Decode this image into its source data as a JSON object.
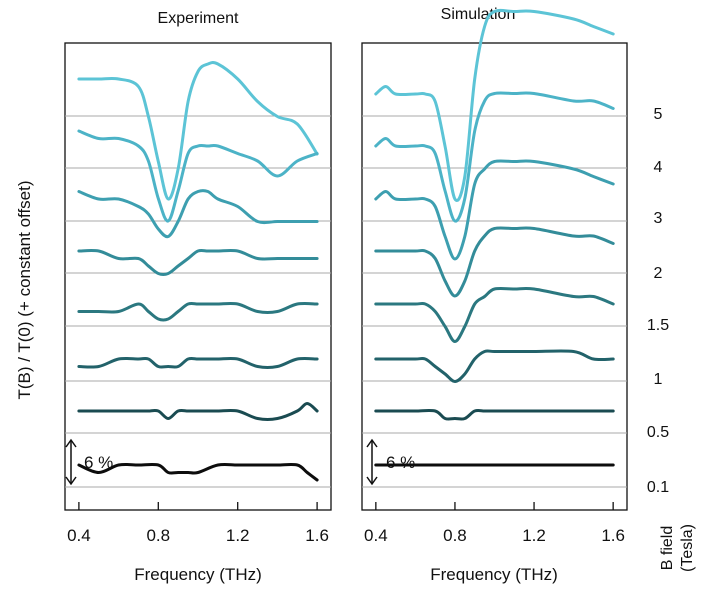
{
  "figure": {
    "ylabel": "T(B) / T(0)   (+ constant offset)",
    "field_axis_label": [
      "B field",
      "(Tesla)"
    ],
    "scale_bar_label": "6 %",
    "field_values": [
      "5",
      "4",
      "3",
      "2",
      "1.5",
      "1",
      "0.5",
      "0.1"
    ],
    "colors": [
      "#5cc4d6",
      "#4cb3c7",
      "#3d9fb0",
      "#338c99",
      "#2b7880",
      "#22626a",
      "#1a4b51",
      "#0d0d0d"
    ],
    "baseline_color": "#a8a8a8"
  },
  "chart_data": [
    {
      "type": "line",
      "title": "Experiment",
      "xlabel": "Frequency (THz)",
      "ylabel": "T(B) / T(0)   (+ constant offset)",
      "xlim": [
        0.33,
        1.67
      ],
      "xticks": [
        "0.4",
        "0.8",
        "1.2",
        "1.6"
      ],
      "offset_step": 0.06,
      "series": [
        {
          "name": "5",
          "x": [
            0.4,
            0.5,
            0.6,
            0.7,
            0.75,
            0.8,
            0.85,
            0.9,
            0.95,
            1.0,
            1.05,
            1.1,
            1.2,
            1.3,
            1.4,
            1.5,
            1.6
          ],
          "y": [
            1.02,
            1.02,
            1.02,
            1.01,
            0.97,
            0.91,
            0.86,
            0.9,
            0.99,
            1.03,
            1.04,
            1.04,
            1.02,
            0.99,
            0.97,
            0.96,
            0.92
          ]
        },
        {
          "name": "4",
          "x": [
            0.4,
            0.5,
            0.6,
            0.7,
            0.75,
            0.8,
            0.85,
            0.9,
            0.95,
            1.0,
            1.05,
            1.1,
            1.2,
            1.3,
            1.4,
            1.5,
            1.6
          ],
          "y": [
            1.02,
            1.01,
            1.01,
            1.0,
            0.98,
            0.93,
            0.9,
            0.94,
            0.99,
            1.0,
            1.0,
            1.0,
            0.99,
            0.98,
            0.96,
            0.98,
            0.99
          ]
        },
        {
          "name": "3",
          "x": [
            0.4,
            0.5,
            0.6,
            0.7,
            0.75,
            0.8,
            0.85,
            0.9,
            0.95,
            1.0,
            1.05,
            1.1,
            1.2,
            1.3,
            1.4,
            1.5,
            1.6
          ],
          "y": [
            1.01,
            1.0,
            1.0,
            0.99,
            0.98,
            0.96,
            0.95,
            0.97,
            1.0,
            1.01,
            1.01,
            1.0,
            0.99,
            0.97,
            0.97,
            0.97,
            0.97
          ]
        },
        {
          "name": "2",
          "x": [
            0.4,
            0.5,
            0.6,
            0.7,
            0.75,
            0.8,
            0.85,
            0.9,
            0.95,
            1.0,
            1.05,
            1.1,
            1.2,
            1.3,
            1.4,
            1.5,
            1.6
          ],
          "y": [
            1.0,
            1.0,
            0.99,
            0.99,
            0.98,
            0.97,
            0.97,
            0.98,
            0.99,
            1.0,
            1.0,
            1.0,
            1.0,
            0.99,
            0.99,
            0.99,
            0.99
          ]
        },
        {
          "name": "1.5",
          "x": [
            0.4,
            0.5,
            0.6,
            0.7,
            0.75,
            0.8,
            0.85,
            0.9,
            0.95,
            1.0,
            1.05,
            1.1,
            1.2,
            1.3,
            1.4,
            1.5,
            1.6
          ],
          "y": [
            0.99,
            0.99,
            0.99,
            1.0,
            0.99,
            0.98,
            0.98,
            0.99,
            1.0,
            1.0,
            1.0,
            1.0,
            1.0,
            0.99,
            0.99,
            1.0,
            1.0
          ]
        },
        {
          "name": "1",
          "x": [
            0.4,
            0.5,
            0.6,
            0.7,
            0.75,
            0.8,
            0.85,
            0.9,
            0.95,
            1.0,
            1.05,
            1.1,
            1.2,
            1.3,
            1.4,
            1.5,
            1.6
          ],
          "y": [
            0.99,
            0.99,
            1.0,
            1.0,
            1.0,
            0.99,
            0.99,
            0.99,
            1.0,
            1.0,
            1.0,
            1.0,
            1.0,
            0.99,
            0.99,
            1.0,
            1.0
          ]
        },
        {
          "name": "0.5",
          "x": [
            0.4,
            0.5,
            0.6,
            0.7,
            0.75,
            0.8,
            0.85,
            0.9,
            0.95,
            1.0,
            1.05,
            1.1,
            1.2,
            1.3,
            1.4,
            1.5,
            1.55,
            1.6
          ],
          "y": [
            1.0,
            1.0,
            1.0,
            1.0,
            1.0,
            1.0,
            0.99,
            1.0,
            1.0,
            1.0,
            1.0,
            1.0,
            1.0,
            0.99,
            0.99,
            1.0,
            1.01,
            1.0
          ]
        },
        {
          "name": "0.1",
          "x": [
            0.4,
            0.5,
            0.6,
            0.7,
            0.8,
            0.85,
            0.9,
            0.95,
            1.0,
            1.1,
            1.2,
            1.3,
            1.4,
            1.5,
            1.55,
            1.6
          ],
          "y": [
            1.0,
            0.99,
            1.0,
            1.0,
            1.0,
            0.99,
            0.99,
            0.99,
            0.99,
            1.0,
            1.0,
            1.0,
            1.0,
            1.0,
            0.99,
            0.98
          ]
        }
      ]
    },
    {
      "type": "line",
      "title": "Simulation",
      "xlabel": "Frequency (THz)",
      "xlim": [
        0.33,
        1.67
      ],
      "xticks": [
        "0.4",
        "0.8",
        "1.2",
        "1.6"
      ],
      "offset_step": 0.06,
      "series": [
        {
          "name": "5",
          "x": [
            0.4,
            0.45,
            0.5,
            0.6,
            0.65,
            0.7,
            0.75,
            0.8,
            0.85,
            0.9,
            0.95,
            1.0,
            1.1,
            1.2,
            1.4,
            1.5,
            1.6
          ],
          "y": [
            1.0,
            1.01,
            1.0,
            1.0,
            1.0,
            0.99,
            0.93,
            0.86,
            0.89,
            1.02,
            1.09,
            1.11,
            1.11,
            1.11,
            1.1,
            1.09,
            1.08
          ]
        },
        {
          "name": "4",
          "x": [
            0.4,
            0.45,
            0.5,
            0.6,
            0.65,
            0.7,
            0.75,
            0.8,
            0.85,
            0.9,
            0.95,
            1.0,
            1.1,
            1.2,
            1.4,
            1.5,
            1.6
          ],
          "y": [
            1.0,
            1.01,
            1.0,
            1.0,
            1.0,
            0.99,
            0.94,
            0.9,
            0.93,
            1.02,
            1.06,
            1.07,
            1.07,
            1.07,
            1.06,
            1.06,
            1.05
          ]
        },
        {
          "name": "3",
          "x": [
            0.4,
            0.45,
            0.5,
            0.6,
            0.65,
            0.7,
            0.75,
            0.8,
            0.85,
            0.9,
            0.95,
            1.0,
            1.1,
            1.2,
            1.4,
            1.5,
            1.6
          ],
          "y": [
            1.0,
            1.01,
            1.0,
            1.0,
            1.0,
            0.99,
            0.95,
            0.92,
            0.95,
            1.02,
            1.04,
            1.05,
            1.05,
            1.05,
            1.04,
            1.03,
            1.02
          ]
        },
        {
          "name": "2",
          "x": [
            0.4,
            0.45,
            0.5,
            0.6,
            0.65,
            0.7,
            0.75,
            0.8,
            0.85,
            0.9,
            0.95,
            1.0,
            1.1,
            1.2,
            1.4,
            1.5,
            1.6
          ],
          "y": [
            1.0,
            1.0,
            1.0,
            1.0,
            1.0,
            0.99,
            0.96,
            0.94,
            0.96,
            1.0,
            1.02,
            1.03,
            1.03,
            1.03,
            1.02,
            1.02,
            1.01
          ]
        },
        {
          "name": "1.5",
          "x": [
            0.4,
            0.45,
            0.5,
            0.6,
            0.65,
            0.7,
            0.75,
            0.8,
            0.85,
            0.9,
            0.95,
            1.0,
            1.1,
            1.2,
            1.4,
            1.5,
            1.6
          ],
          "y": [
            1.0,
            1.0,
            1.0,
            1.0,
            1.0,
            0.99,
            0.97,
            0.95,
            0.97,
            1.0,
            1.01,
            1.02,
            1.02,
            1.02,
            1.01,
            1.01,
            1.0
          ]
        },
        {
          "name": "1",
          "x": [
            0.4,
            0.45,
            0.5,
            0.6,
            0.65,
            0.7,
            0.75,
            0.8,
            0.85,
            0.9,
            0.95,
            1.0,
            1.1,
            1.2,
            1.4,
            1.5,
            1.6
          ],
          "y": [
            1.0,
            1.0,
            1.0,
            1.0,
            1.0,
            0.99,
            0.98,
            0.97,
            0.98,
            1.0,
            1.01,
            1.01,
            1.01,
            1.01,
            1.01,
            1.0,
            1.0
          ]
        },
        {
          "name": "0.5",
          "x": [
            0.4,
            0.5,
            0.6,
            0.7,
            0.75,
            0.8,
            0.85,
            0.9,
            0.95,
            1.0,
            1.1,
            1.2,
            1.4,
            1.5,
            1.6
          ],
          "y": [
            1.0,
            1.0,
            1.0,
            1.0,
            0.99,
            0.99,
            0.99,
            1.0,
            1.0,
            1.0,
            1.0,
            1.0,
            1.0,
            1.0,
            1.0
          ]
        },
        {
          "name": "0.1",
          "x": [
            0.4,
            0.6,
            0.8,
            1.0,
            1.2,
            1.4,
            1.6
          ],
          "y": [
            1.0,
            1.0,
            1.0,
            1.0,
            1.0,
            1.0,
            1.0
          ]
        }
      ]
    }
  ]
}
